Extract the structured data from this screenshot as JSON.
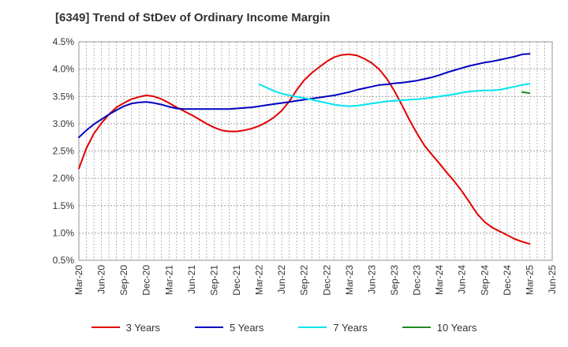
{
  "title": "[6349]  Trend of StDev of Ordinary Income Margin",
  "chart_data": {
    "type": "line",
    "title": "[6349]  Trend of StDev of Ordinary Income Margin",
    "ylim": [
      0.5,
      4.5
    ],
    "yticks": [
      "0.5%",
      "1.0%",
      "1.5%",
      "2.0%",
      "2.5%",
      "3.0%",
      "3.5%",
      "4.0%",
      "4.5%"
    ],
    "x_tick_labels": [
      "Mar-20",
      "Jun-20",
      "Sep-20",
      "Dec-20",
      "Mar-21",
      "Jun-21",
      "Sep-21",
      "Dec-21",
      "Mar-22",
      "Jun-22",
      "Sep-22",
      "Dec-22",
      "Mar-23",
      "Jun-23",
      "Sep-23",
      "Dec-23",
      "Mar-24",
      "Jun-24",
      "Sep-24",
      "Dec-24",
      "Mar-25",
      "Jun-25"
    ],
    "grid": true,
    "legend": "bottom",
    "series": [
      {
        "name": "3 Years",
        "color": "#e00000",
        "x": [
          "Mar-20",
          "Apr-20",
          "May-20",
          "Jun-20",
          "Jul-20",
          "Aug-20",
          "Sep-20",
          "Oct-20",
          "Nov-20",
          "Dec-20",
          "Jan-21",
          "Feb-21",
          "Mar-21",
          "Apr-21",
          "May-21",
          "Jun-21",
          "Jul-21",
          "Aug-21",
          "Sep-21",
          "Oct-21",
          "Nov-21",
          "Dec-21",
          "Jan-22",
          "Feb-22",
          "Mar-22",
          "Apr-22",
          "May-22",
          "Jun-22",
          "Jul-22",
          "Aug-22",
          "Sep-22",
          "Oct-22",
          "Nov-22",
          "Dec-22",
          "Jan-23",
          "Feb-23",
          "Mar-23",
          "Apr-23",
          "May-23",
          "Jun-23",
          "Jul-23",
          "Aug-23",
          "Sep-23",
          "Oct-23",
          "Nov-23",
          "Dec-23",
          "Jan-24",
          "Feb-24",
          "Mar-24",
          "Apr-24",
          "May-24",
          "Jun-24",
          "Jul-24",
          "Aug-24",
          "Sep-24",
          "Oct-24",
          "Nov-24",
          "Dec-24",
          "Jan-25",
          "Feb-25",
          "Mar-25"
        ],
        "values": [
          2.18,
          2.55,
          2.82,
          3.01,
          3.17,
          3.3,
          3.38,
          3.45,
          3.49,
          3.52,
          3.5,
          3.45,
          3.38,
          3.3,
          3.23,
          3.16,
          3.08,
          3.0,
          2.93,
          2.88,
          2.86,
          2.86,
          2.88,
          2.91,
          2.96,
          3.03,
          3.12,
          3.24,
          3.41,
          3.62,
          3.8,
          3.93,
          4.04,
          4.14,
          4.22,
          4.26,
          4.27,
          4.25,
          4.19,
          4.11,
          3.99,
          3.82,
          3.6,
          3.34,
          3.07,
          2.82,
          2.6,
          2.43,
          2.27,
          2.1,
          1.94,
          1.76,
          1.56,
          1.35,
          1.2,
          1.1,
          1.03,
          0.96,
          0.89,
          0.84,
          0.8
        ]
      },
      {
        "name": "5 Years",
        "color": "#0000c0",
        "x": [
          "Mar-20",
          "Apr-20",
          "May-20",
          "Jun-20",
          "Jul-20",
          "Aug-20",
          "Sep-20",
          "Oct-20",
          "Nov-20",
          "Dec-20",
          "Jan-21",
          "Feb-21",
          "Mar-21",
          "Apr-21",
          "May-21",
          "Jun-21",
          "Jul-21",
          "Aug-21",
          "Sep-21",
          "Oct-21",
          "Nov-21",
          "Dec-21",
          "Jan-22",
          "Feb-22",
          "Mar-22",
          "Apr-22",
          "May-22",
          "Jun-22",
          "Jul-22",
          "Aug-22",
          "Sep-22",
          "Oct-22",
          "Nov-22",
          "Dec-22",
          "Jan-23",
          "Feb-23",
          "Mar-23",
          "Apr-23",
          "May-23",
          "Jun-23",
          "Jul-23",
          "Aug-23",
          "Sep-23",
          "Oct-23",
          "Nov-23",
          "Dec-23",
          "Jan-24",
          "Feb-24",
          "Mar-24",
          "Apr-24",
          "May-24",
          "Jun-24",
          "Jul-24",
          "Aug-24",
          "Sep-24",
          "Oct-24",
          "Nov-24",
          "Dec-24",
          "Jan-25",
          "Feb-25",
          "Mar-25"
        ],
        "values": [
          2.75,
          2.88,
          2.99,
          3.08,
          3.17,
          3.25,
          3.32,
          3.37,
          3.39,
          3.4,
          3.38,
          3.35,
          3.31,
          3.28,
          3.27,
          3.27,
          3.27,
          3.27,
          3.27,
          3.27,
          3.27,
          3.28,
          3.29,
          3.3,
          3.32,
          3.34,
          3.36,
          3.38,
          3.4,
          3.42,
          3.44,
          3.46,
          3.48,
          3.5,
          3.52,
          3.55,
          3.58,
          3.62,
          3.65,
          3.68,
          3.71,
          3.72,
          3.74,
          3.75,
          3.77,
          3.79,
          3.82,
          3.85,
          3.89,
          3.94,
          3.98,
          4.02,
          4.06,
          4.09,
          4.12,
          4.14,
          4.17,
          4.2,
          4.23,
          4.27,
          4.28
        ]
      },
      {
        "name": "7 Years",
        "color": "#00e5ee",
        "x": [
          "Mar-22",
          "Apr-22",
          "May-22",
          "Jun-22",
          "Jul-22",
          "Aug-22",
          "Sep-22",
          "Oct-22",
          "Nov-22",
          "Dec-22",
          "Jan-23",
          "Feb-23",
          "Mar-23",
          "Apr-23",
          "May-23",
          "Jun-23",
          "Jul-23",
          "Aug-23",
          "Sep-23",
          "Oct-23",
          "Nov-23",
          "Dec-23",
          "Jan-24",
          "Feb-24",
          "Mar-24",
          "Apr-24",
          "May-24",
          "Jun-24",
          "Jul-24",
          "Aug-24",
          "Sep-24",
          "Oct-24",
          "Nov-24",
          "Dec-24",
          "Jan-25",
          "Feb-25",
          "Mar-25"
        ],
        "values": [
          3.72,
          3.66,
          3.6,
          3.55,
          3.52,
          3.49,
          3.47,
          3.44,
          3.41,
          3.38,
          3.35,
          3.33,
          3.32,
          3.33,
          3.35,
          3.37,
          3.39,
          3.41,
          3.42,
          3.43,
          3.44,
          3.45,
          3.46,
          3.48,
          3.5,
          3.52,
          3.54,
          3.57,
          3.59,
          3.6,
          3.61,
          3.61,
          3.62,
          3.65,
          3.68,
          3.71,
          3.73
        ]
      },
      {
        "name": "10 Years",
        "color": "#228b22",
        "x": [
          "Feb-25",
          "Mar-25"
        ],
        "values": [
          3.58,
          3.56
        ]
      }
    ]
  }
}
